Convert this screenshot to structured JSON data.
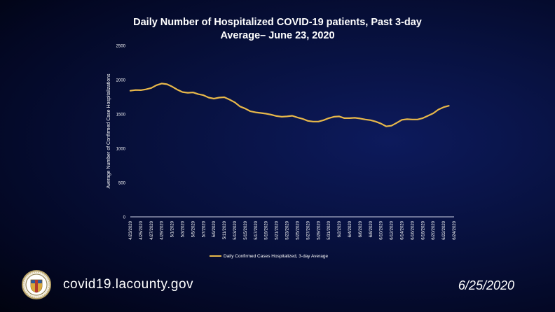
{
  "slide": {
    "title_line1": "Daily Number of Hospitalized COVID-19 patients, Past 3-day",
    "title_line2": "Average– June 23, 2020",
    "url": "covid19.lacounty.gov",
    "date": "6/25/2020",
    "seal_icon": "la-county-seal-icon"
  },
  "colors": {
    "background": "#07103c",
    "line": "#e8b84a",
    "text": "#ffffff"
  },
  "chart_data": {
    "type": "line",
    "title": "Daily Number of Hospitalized COVID-19 patients, Past 3-day Average– June 23, 2020",
    "xlabel": "",
    "ylabel": "Average Number of Confirmed Case Hospitalizations",
    "ylim": [
      0,
      2500
    ],
    "yticks": [
      0,
      500,
      1000,
      1500,
      2000,
      2500
    ],
    "grid": false,
    "legend_position": "bottom",
    "x_tick_labels": [
      "4/23/2020",
      "4/25/2020",
      "4/27/2020",
      "4/29/2020",
      "5/1/2020",
      "5/3/2020",
      "5/5/2020",
      "5/7/2020",
      "5/9/2020",
      "5/11/2020",
      "5/13/2020",
      "5/15/2020",
      "5/17/2020",
      "5/19/2020",
      "5/21/2020",
      "5/23/2020",
      "5/25/2020",
      "5/27/2020",
      "5/29/2020",
      "5/31/2020",
      "6/2/2020",
      "6/4/2020",
      "6/6/2020",
      "6/8/2020",
      "6/10/2020",
      "6/12/2020",
      "6/14/2020",
      "6/16/2020",
      "6/18/2020",
      "6/20/2020",
      "6/22/2020",
      "6/24/2020"
    ],
    "series": [
      {
        "name": "Daily Confirmed Cases Hospitalized, 3-day Average",
        "x": [
          "4/23/2020",
          "4/24/2020",
          "4/25/2020",
          "4/26/2020",
          "4/27/2020",
          "4/28/2020",
          "4/29/2020",
          "4/30/2020",
          "5/1/2020",
          "5/2/2020",
          "5/3/2020",
          "5/4/2020",
          "5/5/2020",
          "5/6/2020",
          "5/7/2020",
          "5/8/2020",
          "5/9/2020",
          "5/10/2020",
          "5/11/2020",
          "5/12/2020",
          "5/13/2020",
          "5/14/2020",
          "5/15/2020",
          "5/16/2020",
          "5/17/2020",
          "5/18/2020",
          "5/19/2020",
          "5/20/2020",
          "5/21/2020",
          "5/22/2020",
          "5/23/2020",
          "5/24/2020",
          "5/25/2020",
          "5/26/2020",
          "5/27/2020",
          "5/28/2020",
          "5/29/2020",
          "5/30/2020",
          "5/31/2020",
          "6/1/2020",
          "6/2/2020",
          "6/3/2020",
          "6/4/2020",
          "6/5/2020",
          "6/6/2020",
          "6/7/2020",
          "6/8/2020",
          "6/9/2020",
          "6/10/2020",
          "6/11/2020",
          "6/12/2020",
          "6/13/2020",
          "6/14/2020",
          "6/15/2020",
          "6/16/2020",
          "6/17/2020",
          "6/18/2020",
          "6/19/2020",
          "6/20/2020",
          "6/21/2020",
          "6/22/2020",
          "6/23/2020"
        ],
        "values": [
          1840,
          1850,
          1848,
          1860,
          1880,
          1920,
          1945,
          1935,
          1900,
          1855,
          1820,
          1810,
          1815,
          1790,
          1775,
          1740,
          1725,
          1740,
          1745,
          1710,
          1670,
          1610,
          1580,
          1540,
          1525,
          1515,
          1505,
          1490,
          1470,
          1460,
          1465,
          1475,
          1450,
          1430,
          1400,
          1390,
          1390,
          1410,
          1440,
          1460,
          1465,
          1440,
          1440,
          1445,
          1435,
          1420,
          1410,
          1390,
          1360,
          1320,
          1330,
          1370,
          1415,
          1425,
          1420,
          1420,
          1440,
          1475,
          1510,
          1565,
          1600,
          1620
        ]
      }
    ]
  }
}
